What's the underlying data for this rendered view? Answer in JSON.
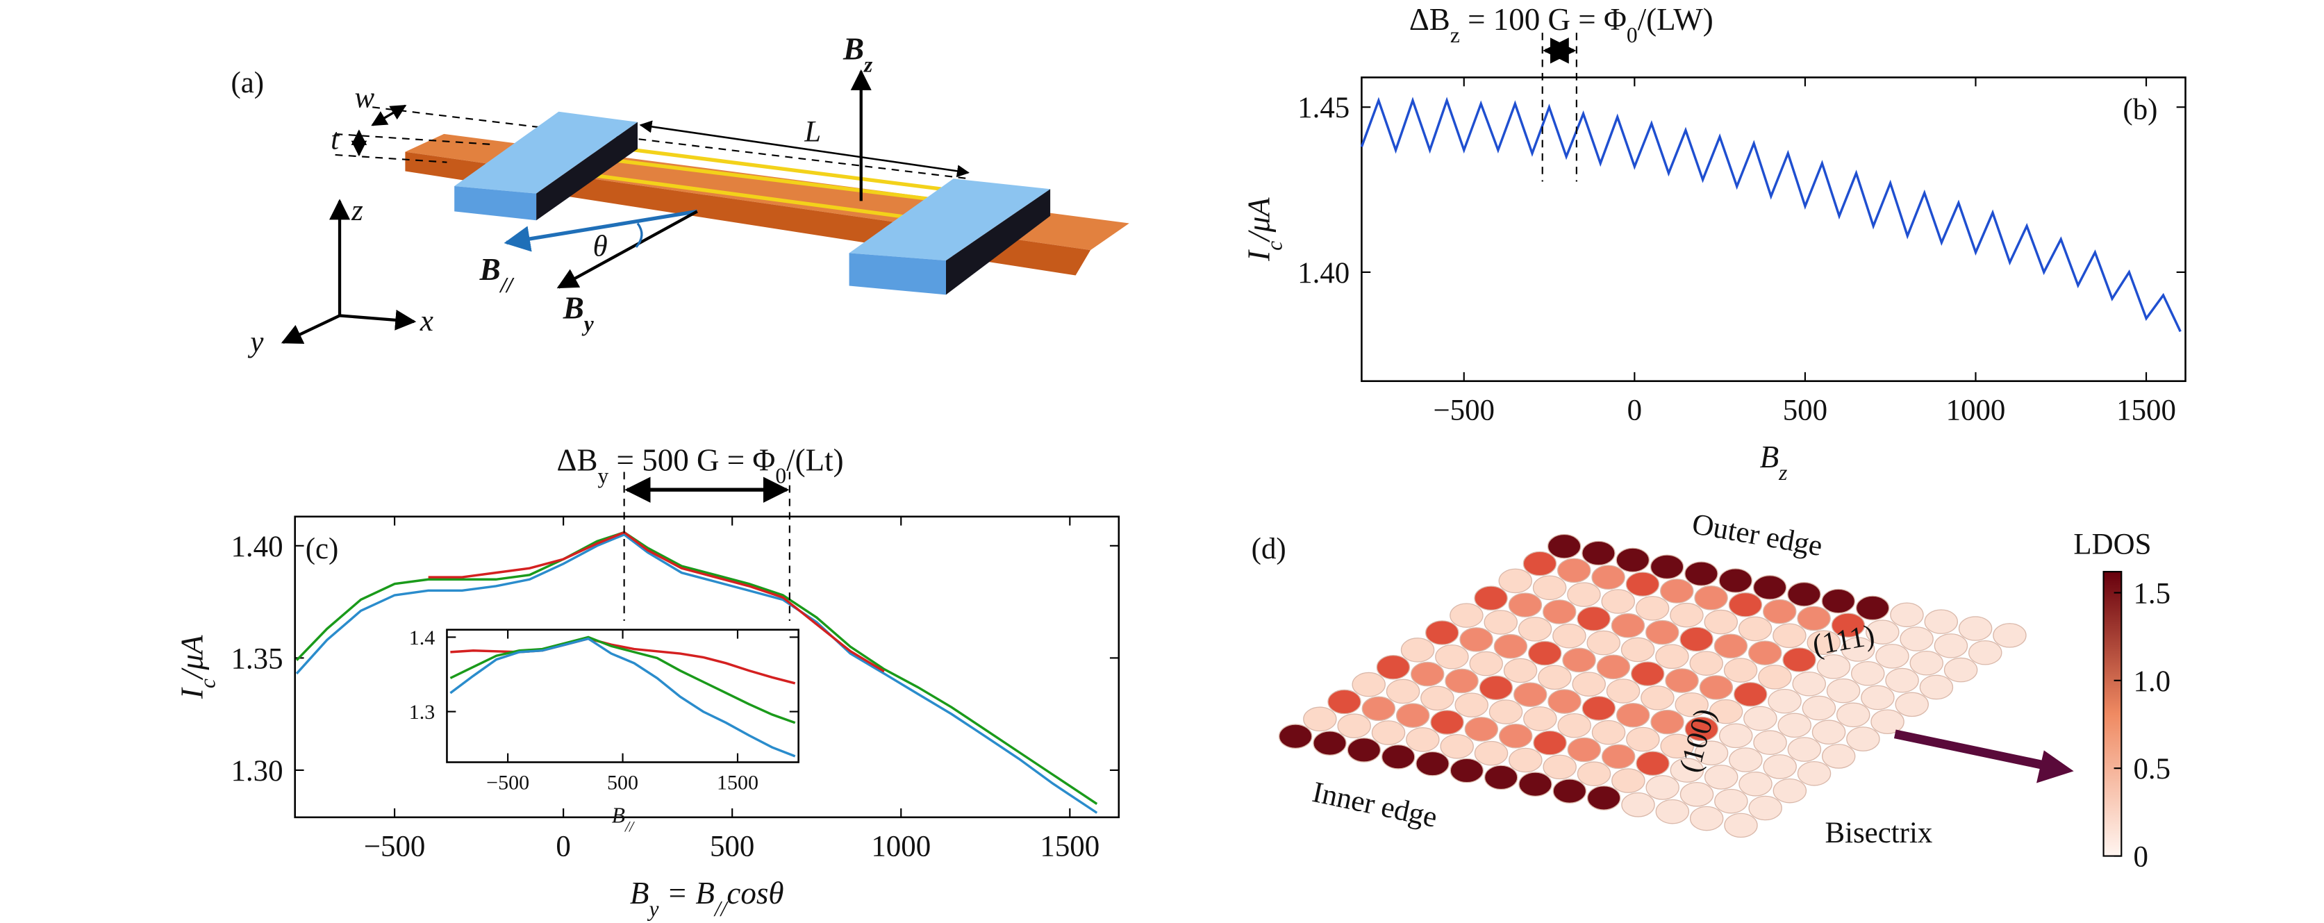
{
  "panel_a": {
    "label": "(a)",
    "w": "w",
    "t": "t",
    "L": "L",
    "Bz": [
      "B",
      "z"
    ],
    "Bpar": [
      "B",
      "//"
    ],
    "theta": "θ",
    "By": [
      "B",
      "y"
    ],
    "z": "z",
    "x": "x",
    "y": "y"
  },
  "panel_d": {
    "label": "(d)",
    "outer": "Outer edge",
    "inner": "Inner edge",
    "face100": "(100)",
    "face111": "(111)",
    "bisectrix": "Bisectrix"
  },
  "chart_data": [
    {
      "type": "line",
      "label": "(b)",
      "annotation": [
        "ΔB",
        "z",
        " = 100 G = Φ",
        "0",
        "/(LW)"
      ],
      "annotation_color": "#7b3f9e",
      "xlabel": [
        "B",
        "z"
      ],
      "ylabel": [
        "I",
        "c",
        "/μA"
      ],
      "x": [
        -800,
        -750,
        -700,
        -650,
        -600,
        -550,
        -500,
        -450,
        -400,
        -350,
        -300,
        -250,
        -200,
        -150,
        -100,
        -50,
        0,
        50,
        100,
        150,
        200,
        250,
        300,
        350,
        400,
        450,
        500,
        550,
        600,
        650,
        700,
        750,
        800,
        850,
        900,
        950,
        1000,
        1050,
        1100,
        1150,
        1200,
        1250,
        1300,
        1350,
        1400,
        1450,
        1500,
        1550,
        1600
      ],
      "series": [
        {
          "color": "#1f4fd0",
          "values": [
            1.438,
            1.452,
            1.437,
            1.452,
            1.437,
            1.452,
            1.437,
            1.451,
            1.437,
            1.451,
            1.436,
            1.45,
            1.435,
            1.448,
            1.433,
            1.447,
            1.432,
            1.445,
            1.43,
            1.443,
            1.428,
            1.441,
            1.426,
            1.439,
            1.423,
            1.436,
            1.42,
            1.433,
            1.417,
            1.43,
            1.414,
            1.427,
            1.411,
            1.424,
            1.409,
            1.421,
            1.406,
            1.418,
            1.403,
            1.414,
            1.4,
            1.41,
            1.396,
            1.406,
            1.392,
            1.4,
            1.386,
            1.393,
            1.382
          ]
        }
      ],
      "xlim": [
        -800,
        1615
      ],
      "ylim": [
        1.367,
        1.459
      ],
      "xticks": [
        {
          "value": -500,
          "label": "−500"
        },
        0,
        500,
        1000,
        1500
      ],
      "yticks": [
        {
          "value": 1.4,
          "label": "1.40"
        },
        1.45
      ],
      "vlines": [
        -270,
        -170
      ]
    },
    {
      "type": "line",
      "label": "(c)",
      "annotation": [
        "ΔB",
        "y",
        " = 500 G = Φ",
        "0",
        "/(Lt)"
      ],
      "annotation_color": "#4a7fc8",
      "xlabel": [
        "B",
        "y",
        " = B",
        "//",
        "cosθ"
      ],
      "ylabel": [
        "I",
        "c",
        "/μA"
      ],
      "x": [
        -790,
        -700,
        -600,
        -500,
        -400,
        -300,
        -200,
        -100,
        0,
        100,
        180,
        250,
        350,
        450,
        550,
        650,
        750,
        850,
        950,
        1050,
        1150,
        1250,
        1350,
        1450,
        1580
      ],
      "series": [
        {
          "color": "#2a8ccc",
          "values": [
            1.343,
            1.358,
            1.371,
            1.378,
            1.38,
            1.38,
            1.382,
            1.385,
            1.392,
            1.4,
            1.405,
            1.397,
            1.388,
            1.384,
            1.38,
            1.376,
            1.366,
            1.352,
            1.343,
            1.334,
            1.325,
            1.315,
            1.305,
            1.294,
            1.281
          ]
        },
        {
          "color": "#1a9a1a",
          "values": [
            1.349,
            1.363,
            1.376,
            1.383,
            1.385,
            1.385,
            1.385,
            1.387,
            1.394,
            1.402,
            1.406,
            1.399,
            1.391,
            1.387,
            1.383,
            1.378,
            1.368,
            1.355,
            1.345,
            1.337,
            1.328,
            1.318,
            1.308,
            1.298,
            1.285
          ]
        },
        {
          "color": "#d42020",
          "values": [
            null,
            null,
            null,
            null,
            1.386,
            1.386,
            1.388,
            1.39,
            1.394,
            1.401,
            1.406,
            1.398,
            1.39,
            1.386,
            1.382,
            1.377,
            1.365,
            1.353,
            1.344,
            null,
            null,
            null,
            null,
            null,
            null
          ]
        }
      ],
      "xlim": [
        -795,
        1645
      ],
      "ylim": [
        1.279,
        1.413
      ],
      "xticks": [
        {
          "value": -500,
          "label": "−500"
        },
        0,
        500,
        1000,
        1500
      ],
      "yticks": [
        {
          "value": 1.3,
          "label": "1.30"
        },
        1.35,
        {
          "value": 1.4,
          "label": "1.40"
        }
      ],
      "vlines": [
        180,
        670
      ]
    },
    {
      "type": "line",
      "xlabel": [
        "B",
        "//"
      ],
      "x": [
        -1000,
        -800,
        -600,
        -400,
        -200,
        0,
        200,
        400,
        600,
        800,
        1000,
        1200,
        1400,
        1600,
        1800,
        2000
      ],
      "series": [
        {
          "color": "#d42020",
          "values": [
            1.38,
            1.382,
            1.381,
            1.38,
            1.382,
            1.39,
            1.398,
            1.39,
            1.384,
            1.381,
            1.378,
            1.373,
            1.365,
            1.355,
            1.346,
            1.338
          ]
        },
        {
          "color": "#1a9a1a",
          "values": [
            1.345,
            1.36,
            1.375,
            1.382,
            1.384,
            1.392,
            1.4,
            1.388,
            1.38,
            1.372,
            1.355,
            1.34,
            1.325,
            1.31,
            1.296,
            1.285
          ]
        },
        {
          "color": "#2a8ccc",
          "values": [
            1.325,
            1.348,
            1.37,
            1.38,
            1.382,
            1.39,
            1.398,
            1.378,
            1.365,
            1.345,
            1.32,
            1.3,
            1.285,
            1.268,
            1.252,
            1.24
          ]
        }
      ],
      "xlim": [
        -1030,
        2030
      ],
      "ylim": [
        1.232,
        1.41
      ],
      "xticks": [
        {
          "value": -500,
          "label": "−500"
        },
        500,
        1500
      ],
      "yticks": [
        1.3,
        1.4
      ]
    },
    {
      "type": "colorbar",
      "title": "LDOS",
      "lim": [
        0,
        1.62
      ],
      "ticks": [
        0,
        0.5,
        {
          "value": 1,
          "label": "1.0"
        },
        1.5
      ],
      "colors": [
        "#fff5f0",
        "#67000d"
      ]
    }
  ]
}
